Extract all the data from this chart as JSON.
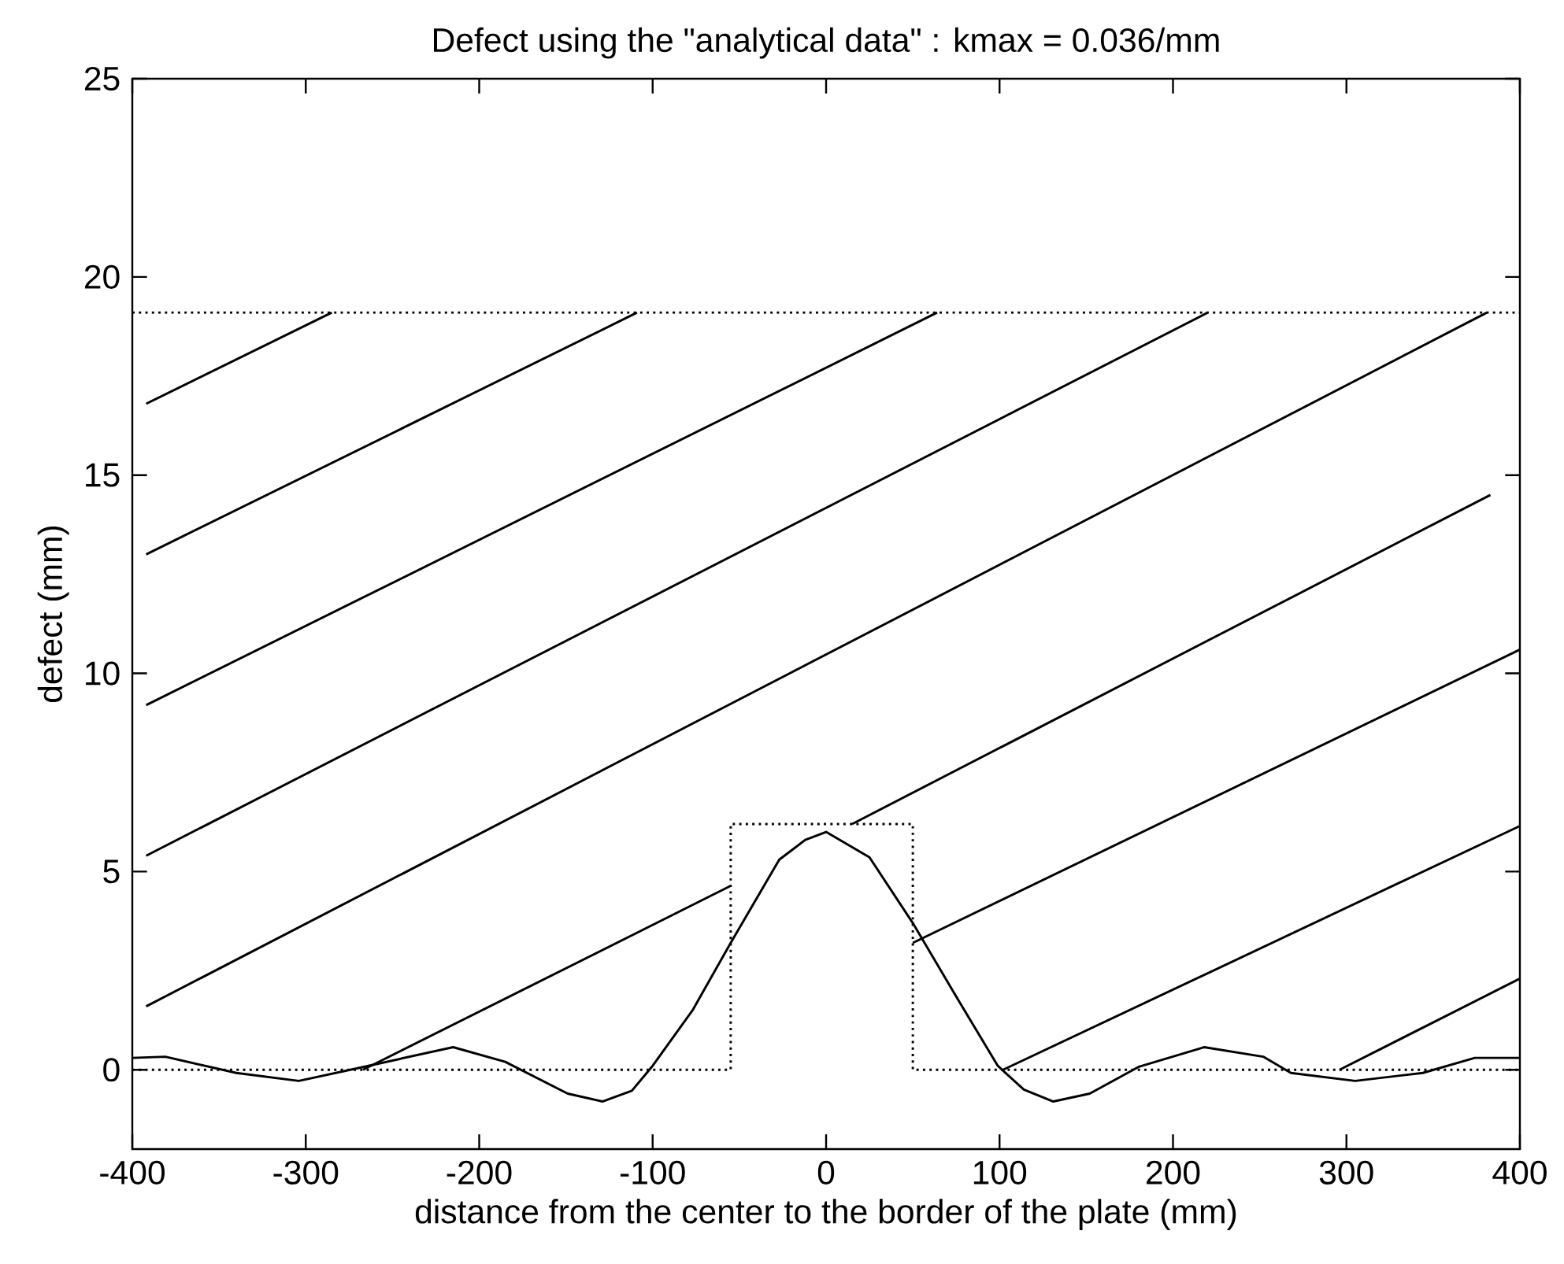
{
  "chart_data": {
    "type": "line",
    "title": "Defect using the \"analytical data\" : kmax = 0.036/mm",
    "xlabel": "distance from the center to the border of the plate (mm)",
    "ylabel": "defect (mm)",
    "xlim": [
      -400,
      400
    ],
    "ylim": [
      -2,
      25
    ],
    "xticks": [
      -400,
      -300,
      -200,
      -100,
      0,
      100,
      200,
      300,
      400
    ],
    "yticks": [
      0,
      5,
      10,
      15,
      20,
      25
    ],
    "grid": false,
    "marker": "none",
    "line_style": "solid",
    "ref_lines": [
      {
        "axis": "y",
        "value": 19.1,
        "color": "#000000",
        "line_style": "dotted"
      }
    ],
    "series": [
      {
        "color": "#000000",
        "x": [
          -400,
          -381,
          -340,
          -304,
          -267,
          -215,
          -185,
          -149,
          -129,
          -112,
          -100,
          -77,
          -55,
          -27,
          -12,
          0,
          25,
          50,
          77,
          99,
          114,
          131,
          152,
          180,
          218,
          252,
          268,
          305,
          344,
          374,
          400
        ],
        "values": [
          0.3,
          0.33,
          -0.08,
          -0.28,
          0.07,
          0.57,
          0.2,
          -0.6,
          -0.8,
          -0.53,
          0.1,
          1.5,
          3.2,
          5.3,
          5.8,
          6.0,
          5.36,
          3.7,
          1.7,
          0.1,
          -0.5,
          -0.8,
          -0.6,
          0.07,
          0.57,
          0.33,
          -0.08,
          -0.28,
          -0.08,
          0.3,
          0.3
        ]
      },
      {
        "color": "#000000",
        "line_style": "dotted",
        "x": [
          -400,
          -55,
          -55,
          50,
          50,
          400
        ],
        "values": [
          0,
          0,
          6.2,
          6.2,
          0,
          0
        ]
      },
      {
        "color": "#000000",
        "x": [
          -392,
          -285
        ],
        "values": [
          16.8,
          19.1
        ]
      },
      {
        "color": "#000000",
        "x": [
          -392,
          -109
        ],
        "values": [
          13.0,
          19.1
        ]
      },
      {
        "color": "#000000",
        "x": [
          -392,
          64
        ],
        "values": [
          9.2,
          19.1
        ]
      },
      {
        "color": "#000000",
        "x": [
          -392,
          220
        ],
        "values": [
          5.4,
          19.1
        ]
      },
      {
        "color": "#000000",
        "x": [
          -392,
          381
        ],
        "values": [
          1.6,
          19.1
        ]
      },
      {
        "color": "#000000",
        "x": [
          -267,
          -55
        ],
        "values": [
          0,
          4.64
        ]
      },
      {
        "color": "#000000",
        "x": [
          15,
          383
        ],
        "values": [
          6.2,
          14.5
        ]
      },
      {
        "color": "#000000",
        "x": [
          50,
          400
        ],
        "values": [
          3.2,
          10.6
        ]
      },
      {
        "color": "#000000",
        "x": [
          102,
          400
        ],
        "values": [
          0,
          6.15
        ]
      },
      {
        "color": "#000000",
        "x": [
          296,
          400
        ],
        "values": [
          0,
          2.3
        ]
      }
    ]
  }
}
